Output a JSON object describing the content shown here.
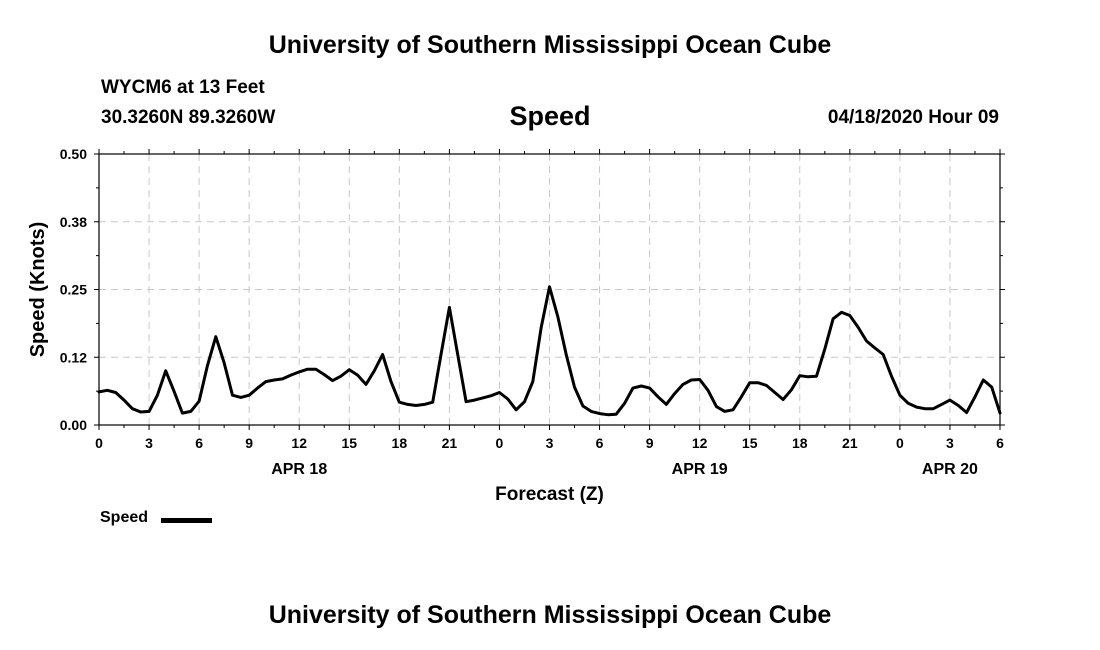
{
  "header": {
    "title": "University of Southern Mississippi Ocean Cube",
    "station": "WYCM6 at 13 Feet",
    "location": "30.3260N 89.3260W",
    "datetime": "04/18/2020 Hour 09"
  },
  "footer": {
    "title": "University of Southern Mississippi Ocean Cube"
  },
  "legend": {
    "label": "Speed"
  },
  "chart_data": {
    "type": "line",
    "title": "Speed",
    "xlabel": "Forecast (Z)",
    "ylabel": "Speed (Knots)",
    "ylim": [
      0,
      0.5
    ],
    "yticks": [
      "0.00",
      "0.12",
      "0.25",
      "0.38",
      "0.50"
    ],
    "xlim": [
      0,
      54
    ],
    "xtick_labels": [
      "0",
      "3",
      "6",
      "9",
      "12",
      "15",
      "18",
      "21",
      "0",
      "3",
      "6",
      "9",
      "12",
      "15",
      "18",
      "21",
      "0",
      "3",
      "6"
    ],
    "date_labels": [
      {
        "label": "APR 18",
        "at": 12
      },
      {
        "label": "APR 19",
        "at": 36
      },
      {
        "label": "APR 20",
        "at": 51
      }
    ],
    "grid": true,
    "series": [
      {
        "name": "Speed",
        "color": "#000000",
        "x": [
          0,
          0.5,
          1,
          1.5,
          2,
          2.5,
          3,
          3.5,
          4,
          4.5,
          5,
          5.5,
          6,
          6.5,
          7,
          7.5,
          8,
          8.5,
          9,
          9.5,
          10,
          10.5,
          11,
          11.5,
          12,
          12.5,
          13,
          13.5,
          14,
          14.5,
          15,
          15.5,
          16,
          16.5,
          17,
          17.5,
          18,
          18.5,
          19,
          19.5,
          20,
          20.5,
          21,
          21.5,
          22,
          22.5,
          23,
          23.5,
          24,
          24.5,
          25,
          25.5,
          26,
          26.5,
          27,
          27.5,
          28,
          28.5,
          29,
          29.5,
          30,
          30.5,
          31,
          31.5,
          32,
          32.5,
          33,
          33.5,
          34,
          34.5,
          35,
          35.5,
          36,
          36.5,
          37,
          37.5,
          38,
          38.5,
          39,
          39.5,
          40,
          40.5,
          41,
          41.5,
          42,
          42.5,
          43,
          43.5,
          44,
          44.5,
          45,
          45.5,
          46,
          46.5,
          47,
          47.5,
          48,
          48.5,
          49,
          49.5,
          50,
          50.5,
          51,
          51.5,
          52,
          52.5,
          53,
          53.5,
          54
        ],
        "values": [
          0.061,
          0.064,
          0.06,
          0.046,
          0.03,
          0.024,
          0.025,
          0.055,
          0.1,
          0.062,
          0.022,
          0.025,
          0.044,
          0.11,
          0.163,
          0.115,
          0.055,
          0.051,
          0.055,
          0.068,
          0.08,
          0.083,
          0.085,
          0.092,
          0.098,
          0.103,
          0.103,
          0.093,
          0.082,
          0.09,
          0.102,
          0.092,
          0.075,
          0.1,
          0.13,
          0.08,
          0.042,
          0.038,
          0.036,
          0.038,
          0.042,
          0.13,
          0.217,
          0.13,
          0.043,
          0.046,
          0.05,
          0.054,
          0.06,
          0.048,
          0.028,
          0.043,
          0.08,
          0.18,
          0.255,
          0.2,
          0.13,
          0.07,
          0.035,
          0.025,
          0.021,
          0.019,
          0.02,
          0.04,
          0.068,
          0.072,
          0.068,
          0.052,
          0.038,
          0.058,
          0.075,
          0.083,
          0.084,
          0.064,
          0.034,
          0.025,
          0.028,
          0.052,
          0.078,
          0.078,
          0.073,
          0.06,
          0.047,
          0.065,
          0.091,
          0.089,
          0.09,
          0.14,
          0.196,
          0.208,
          0.202,
          0.18,
          0.155,
          0.142,
          0.13,
          0.09,
          0.055,
          0.04,
          0.033,
          0.03,
          0.03,
          0.038,
          0.046,
          0.036,
          0.023,
          0.052,
          0.083,
          0.07,
          0.022
        ]
      }
    ]
  }
}
